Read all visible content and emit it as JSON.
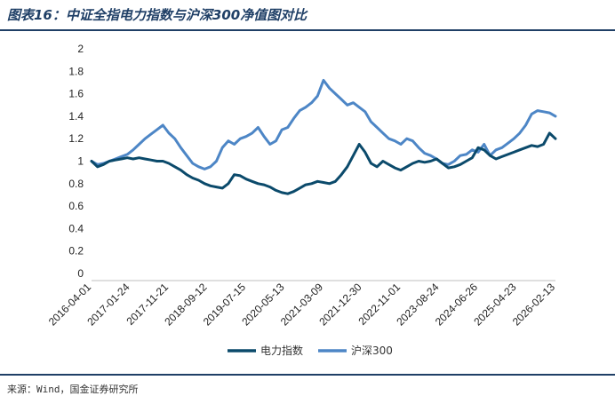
{
  "title": "图表16：中证全指电力指数与沪深300净值图对比",
  "source": "来源：Wind，国金证券研究所",
  "colors": {
    "power": "#0b4a6b",
    "hs300": "#4d86c6",
    "rule": "#1f3f66"
  },
  "chart_data": {
    "type": "line",
    "title": "中证全指电力指数与沪深300净值图对比",
    "xlabel": "",
    "ylabel": "",
    "ylim": [
      0,
      2
    ],
    "yticks": [
      "0",
      "0.2",
      "0.4",
      "0.6",
      "0.8",
      "1",
      "1.2",
      "1.4",
      "1.6",
      "1.8",
      "2"
    ],
    "xticks": [
      "2016-04-01",
      "2017-01-24",
      "2017-11-21",
      "2018-09-12",
      "2019-07-15",
      "2020-05-13",
      "2021-03-09",
      "2021-12-30",
      "2022-11-01",
      "2023-08-24",
      "2024-06-26",
      "2025-04-23",
      "2026-02-13"
    ],
    "grid": false,
    "legend_position": "bottom",
    "series": [
      {
        "name": "电力指数",
        "values": [
          1.0,
          0.95,
          0.97,
          1.0,
          1.01,
          1.02,
          1.03,
          1.02,
          1.03,
          1.02,
          1.01,
          1.0,
          1.0,
          0.98,
          0.95,
          0.92,
          0.88,
          0.85,
          0.83,
          0.8,
          0.78,
          0.77,
          0.76,
          0.8,
          0.88,
          0.87,
          0.84,
          0.82,
          0.8,
          0.79,
          0.77,
          0.74,
          0.72,
          0.71,
          0.73,
          0.76,
          0.79,
          0.8,
          0.82,
          0.81,
          0.8,
          0.82,
          0.88,
          0.95,
          1.05,
          1.15,
          1.08,
          0.98,
          0.95,
          1.0,
          0.97,
          0.94,
          0.92,
          0.95,
          0.98,
          1.0,
          0.99,
          1.0,
          1.02,
          0.98,
          0.94,
          0.95,
          0.97,
          1.0,
          1.03,
          1.12,
          1.1,
          1.05,
          1.02,
          1.04,
          1.06,
          1.08,
          1.1,
          1.12,
          1.14,
          1.13,
          1.15,
          1.25,
          1.2
        ]
      },
      {
        "name": "沪深300",
        "values": [
          1.0,
          0.97,
          0.98,
          1.0,
          1.02,
          1.04,
          1.06,
          1.1,
          1.15,
          1.2,
          1.24,
          1.28,
          1.32,
          1.25,
          1.2,
          1.12,
          1.05,
          0.98,
          0.95,
          0.93,
          0.95,
          1.0,
          1.12,
          1.18,
          1.15,
          1.2,
          1.22,
          1.25,
          1.3,
          1.22,
          1.15,
          1.18,
          1.28,
          1.3,
          1.38,
          1.45,
          1.48,
          1.52,
          1.58,
          1.72,
          1.65,
          1.6,
          1.55,
          1.5,
          1.52,
          1.48,
          1.44,
          1.35,
          1.3,
          1.25,
          1.2,
          1.18,
          1.15,
          1.2,
          1.18,
          1.12,
          1.07,
          1.05,
          1.02,
          0.98,
          0.97,
          1.0,
          1.05,
          1.06,
          1.1,
          1.08,
          1.15,
          1.05,
          1.1,
          1.12,
          1.16,
          1.2,
          1.25,
          1.32,
          1.42,
          1.45,
          1.44,
          1.43,
          1.4
        ]
      }
    ]
  }
}
